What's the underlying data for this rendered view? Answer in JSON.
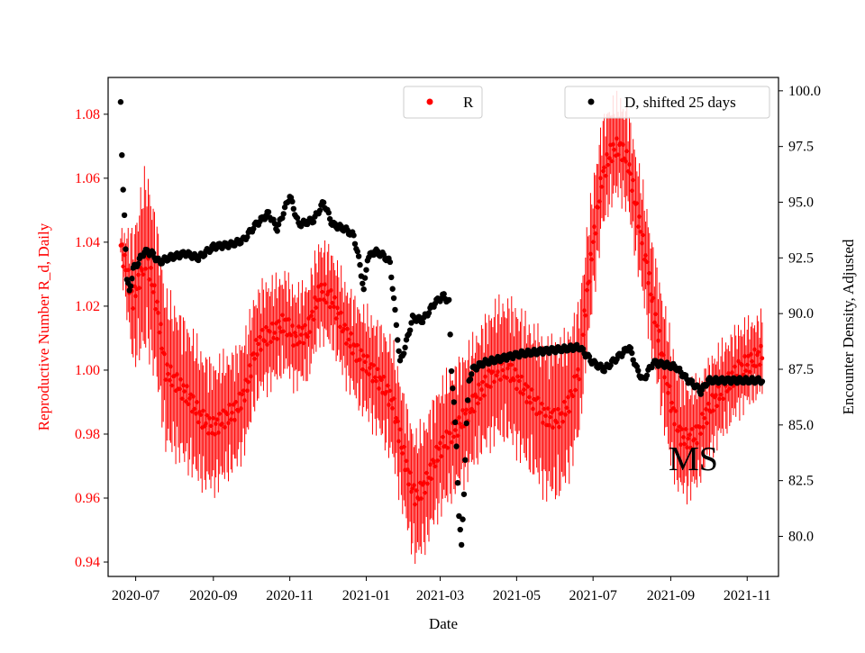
{
  "chart_data": {
    "type": "scatter",
    "title": "",
    "annotation": "MS",
    "xlabel": "Date",
    "ylabel_left": "Reproductive Number R_d, Daily",
    "ylabel_right": "Encounter Density, Adjusted",
    "x_tick_labels": [
      "2020-07",
      "2020-09",
      "2020-11",
      "2021-01",
      "2021-03",
      "2021-05",
      "2021-07",
      "2021-09",
      "2021-11"
    ],
    "x_tick_dates": [
      "2020-07-01",
      "2020-09-01",
      "2020-11-01",
      "2021-01-01",
      "2021-03-01",
      "2021-05-01",
      "2021-07-01",
      "2021-09-01",
      "2021-11-01"
    ],
    "xlim": [
      "2020-06-09",
      "2021-11-26"
    ],
    "y_left_ticks": [
      "0.94",
      "0.96",
      "0.98",
      "1.00",
      "1.02",
      "1.04",
      "1.06",
      "1.08"
    ],
    "y_left_lim": [
      0.9355,
      1.0915
    ],
    "y_right_ticks": [
      "80.0",
      "82.5",
      "85.0",
      "87.5",
      "90.0",
      "92.5",
      "95.0",
      "97.5",
      "100.0"
    ],
    "y_right_lim": [
      78.2,
      100.6
    ],
    "legend_left": {
      "label": "R",
      "placement": "upper-center"
    },
    "legend_right": {
      "label": "D, shifted 25 days",
      "placement": "upper-right"
    },
    "colors": {
      "r_series": "#ff0000",
      "d_series": "#000000"
    },
    "series": [
      {
        "name": "R",
        "color": "#ff0000",
        "error_bars": true,
        "start_date": "2020-06-19",
        "end_date": "2021-11-13",
        "anchors": [
          [
            "2020-06-19",
            1.039
          ],
          [
            "2020-06-24",
            1.03
          ],
          [
            "2020-06-29",
            1.022
          ],
          [
            "2020-07-05",
            1.03
          ],
          [
            "2020-07-10",
            1.035
          ],
          [
            "2020-07-18",
            1.02
          ],
          [
            "2020-07-25",
            1.0
          ],
          [
            "2020-08-05",
            0.995
          ],
          [
            "2020-08-15",
            0.99
          ],
          [
            "2020-08-22",
            0.985
          ],
          [
            "2020-09-01",
            0.982
          ],
          [
            "2020-09-10",
            0.985
          ],
          [
            "2020-09-20",
            0.988
          ],
          [
            "2020-09-28",
            0.995
          ],
          [
            "2020-10-03",
            1.005
          ],
          [
            "2020-10-10",
            1.01
          ],
          [
            "2020-10-20",
            1.012
          ],
          [
            "2020-10-28",
            1.015
          ],
          [
            "2020-11-05",
            1.01
          ],
          [
            "2020-11-15",
            1.012
          ],
          [
            "2020-11-25",
            1.025
          ],
          [
            "2020-12-05",
            1.022
          ],
          [
            "2020-12-15",
            1.012
          ],
          [
            "2020-12-25",
            1.005
          ],
          [
            "2021-01-05",
            1.0
          ],
          [
            "2021-01-15",
            0.995
          ],
          [
            "2021-01-22",
            0.99
          ],
          [
            "2021-01-30",
            0.975
          ],
          [
            "2021-02-05",
            0.965
          ],
          [
            "2021-02-10",
            0.96
          ],
          [
            "2021-02-18",
            0.965
          ],
          [
            "2021-02-28",
            0.975
          ],
          [
            "2021-03-10",
            0.98
          ],
          [
            "2021-03-20",
            0.985
          ],
          [
            "2021-03-28",
            0.99
          ],
          [
            "2021-04-05",
            0.995
          ],
          [
            "2021-04-15",
            1.0
          ],
          [
            "2021-04-25",
            1.0
          ],
          [
            "2021-05-05",
            0.995
          ],
          [
            "2021-05-15",
            0.99
          ],
          [
            "2021-05-25",
            0.985
          ],
          [
            "2021-06-05",
            0.985
          ],
          [
            "2021-06-12",
            0.99
          ],
          [
            "2021-06-20",
            1.0
          ],
          [
            "2021-06-25",
            1.02
          ],
          [
            "2021-07-01",
            1.04
          ],
          [
            "2021-07-08",
            1.06
          ],
          [
            "2021-07-15",
            1.068
          ],
          [
            "2021-07-22",
            1.07
          ],
          [
            "2021-07-29",
            1.065
          ],
          [
            "2021-08-05",
            1.05
          ],
          [
            "2021-08-12",
            1.035
          ],
          [
            "2021-08-18",
            1.02
          ],
          [
            "2021-08-25",
            1.005
          ],
          [
            "2021-09-01",
            0.99
          ],
          [
            "2021-09-08",
            0.98
          ],
          [
            "2021-09-15",
            0.978
          ],
          [
            "2021-09-22",
            0.98
          ],
          [
            "2021-09-28",
            0.985
          ],
          [
            "2021-10-05",
            0.99
          ],
          [
            "2021-10-15",
            0.995
          ],
          [
            "2021-10-25",
            1.0
          ],
          [
            "2021-11-05",
            1.003
          ],
          [
            "2021-11-13",
            1.005
          ]
        ],
        "error_anchors": [
          [
            "2020-06-19",
            0.004
          ],
          [
            "2020-06-28",
            0.02
          ],
          [
            "2020-07-08",
            0.028
          ],
          [
            "2020-07-20",
            0.025
          ],
          [
            "2020-09-01",
            0.02
          ],
          [
            "2020-11-01",
            0.015
          ],
          [
            "2020-12-15",
            0.015
          ],
          [
            "2021-02-10",
            0.02
          ],
          [
            "2021-04-01",
            0.02
          ],
          [
            "2021-06-01",
            0.025
          ],
          [
            "2021-07-20",
            0.015
          ],
          [
            "2021-09-01",
            0.02
          ],
          [
            "2021-10-01",
            0.015
          ],
          [
            "2021-11-13",
            0.012
          ]
        ]
      },
      {
        "name": "D, shifted 25 days",
        "color": "#000000",
        "error_bars": false,
        "start_date": "2020-06-19",
        "end_date": "2021-11-13",
        "anchors": [
          [
            "2020-06-19",
            99.5
          ],
          [
            "2020-06-20",
            97.0
          ],
          [
            "2020-06-21",
            95.5
          ],
          [
            "2020-06-22",
            94.5
          ],
          [
            "2020-06-23",
            93.0
          ],
          [
            "2020-06-24",
            91.5
          ],
          [
            "2020-06-26",
            91.0
          ],
          [
            "2020-06-29",
            92.0
          ],
          [
            "2020-07-03",
            92.3
          ],
          [
            "2020-07-08",
            92.8
          ],
          [
            "2020-07-14",
            92.7
          ],
          [
            "2020-07-20",
            92.3
          ],
          [
            "2020-07-27",
            92.5
          ],
          [
            "2020-08-10",
            92.7
          ],
          [
            "2020-08-20",
            92.5
          ],
          [
            "2020-09-01",
            93.0
          ],
          [
            "2020-09-15",
            93.1
          ],
          [
            "2020-09-25",
            93.3
          ],
          [
            "2020-10-05",
            94.0
          ],
          [
            "2020-10-15",
            94.5
          ],
          [
            "2020-10-22",
            93.8
          ],
          [
            "2020-11-01",
            95.3
          ],
          [
            "2020-11-08",
            94.0
          ],
          [
            "2020-11-20",
            94.2
          ],
          [
            "2020-11-28",
            95.0
          ],
          [
            "2020-12-05",
            94.0
          ],
          [
            "2020-12-15",
            93.8
          ],
          [
            "2020-12-22",
            93.5
          ],
          [
            "2020-12-27",
            92.2
          ],
          [
            "2020-12-30",
            91.0
          ],
          [
            "2021-01-02",
            92.5
          ],
          [
            "2021-01-08",
            92.8
          ],
          [
            "2021-01-15",
            92.6
          ],
          [
            "2021-01-20",
            92.3
          ],
          [
            "2021-01-25",
            89.5
          ],
          [
            "2021-01-28",
            87.8
          ],
          [
            "2021-02-01",
            88.5
          ],
          [
            "2021-02-07",
            89.8
          ],
          [
            "2021-02-15",
            89.7
          ],
          [
            "2021-02-25",
            90.5
          ],
          [
            "2021-03-04",
            90.8
          ],
          [
            "2021-03-08",
            90.5
          ],
          [
            "2021-03-10",
            87.5
          ],
          [
            "2021-03-12",
            86.0
          ],
          [
            "2021-03-14",
            84.0
          ],
          [
            "2021-03-16",
            81.0
          ],
          [
            "2021-03-18",
            79.5
          ],
          [
            "2021-03-20",
            82.0
          ],
          [
            "2021-03-22",
            85.0
          ],
          [
            "2021-03-24",
            87.0
          ],
          [
            "2021-03-27",
            87.5
          ],
          [
            "2021-04-05",
            87.8
          ],
          [
            "2021-04-20",
            88.0
          ],
          [
            "2021-05-05",
            88.2
          ],
          [
            "2021-05-20",
            88.3
          ],
          [
            "2021-06-05",
            88.4
          ],
          [
            "2021-06-20",
            88.5
          ],
          [
            "2021-07-01",
            87.8
          ],
          [
            "2021-07-10",
            87.5
          ],
          [
            "2021-07-20",
            88.0
          ],
          [
            "2021-07-30",
            88.5
          ],
          [
            "2021-08-05",
            87.5
          ],
          [
            "2021-08-10",
            87.0
          ],
          [
            "2021-08-18",
            87.8
          ],
          [
            "2021-08-28",
            87.7
          ],
          [
            "2021-09-05",
            87.6
          ],
          [
            "2021-09-15",
            87.0
          ],
          [
            "2021-09-20",
            86.8
          ],
          [
            "2021-09-25",
            86.5
          ],
          [
            "2021-10-01",
            87.0
          ],
          [
            "2021-10-10",
            87.0
          ],
          [
            "2021-11-13",
            87.0
          ]
        ]
      }
    ]
  }
}
